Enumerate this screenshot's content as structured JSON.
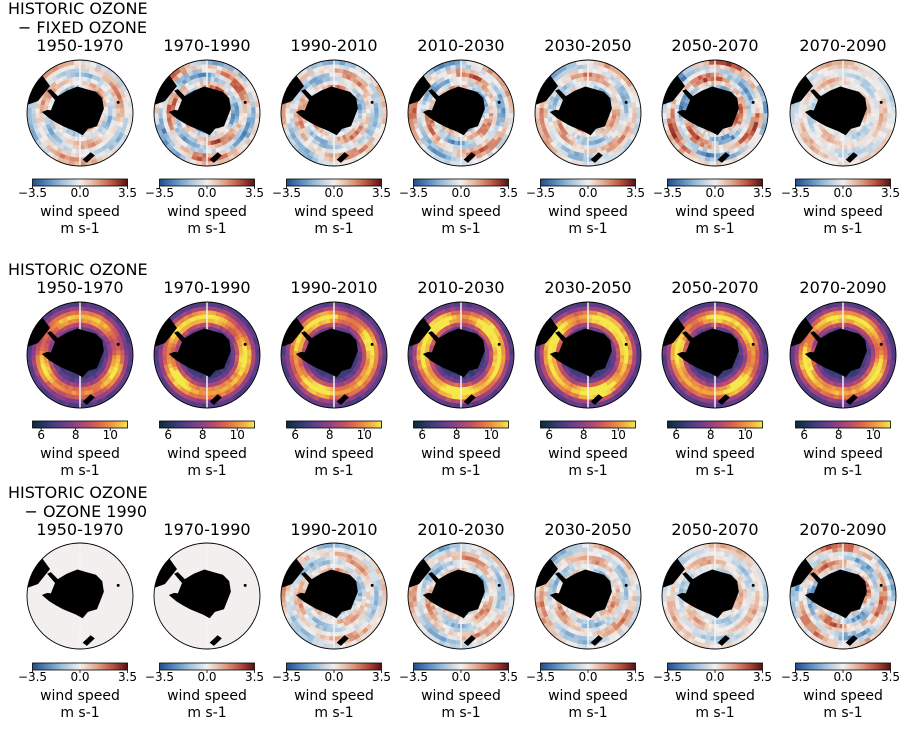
{
  "chart_data": {
    "type": "heatmap",
    "projection": "south-polar stereographic",
    "periods": [
      "1950-1970",
      "1970-1990",
      "1990-2010",
      "2010-2030",
      "2030-2050",
      "2050-2070",
      "2070-2090"
    ],
    "rows": [
      {
        "title_line1": "HISTORIC OZONE",
        "title_line2": "− FIXED OZONE",
        "colormap": "diverging-blue-white-red",
        "color_low": "#1f4e8c",
        "color_mid": "#f2efee",
        "color_high": "#5a0f14",
        "vmin": -3.5,
        "vmax": 3.5,
        "ticks": [
          -3.5,
          0.0,
          3.5
        ],
        "tick_labels": [
          "−3.5",
          "0.0",
          "3.5"
        ],
        "colorbar_label": "wind speed",
        "colorbar_units": "m s-1",
        "field_intensity": [
          0.55,
          0.8,
          0.65,
          0.75,
          0.6,
          0.85,
          0.4
        ]
      },
      {
        "title_line1": "HISTORIC OZONE",
        "title_line2": "",
        "colormap": "thermal",
        "color_low": "#0c2a3a",
        "color_mid": "#8a3f8a",
        "color_high": "#f5e84a",
        "vmin": 5.5,
        "vmax": 11,
        "ticks": [
          6,
          8,
          10
        ],
        "tick_labels": [
          "6",
          "8",
          "10"
        ],
        "colorbar_label": "wind speed",
        "colorbar_units": "m s-1",
        "jet_peak": [
          9.5,
          10,
          10,
          10.5,
          10.5,
          10,
          10
        ]
      },
      {
        "title_line1": "HISTORIC OZONE",
        "title_line2": "− OZONE 1990",
        "colormap": "diverging-blue-white-red",
        "color_low": "#1f4e8c",
        "color_mid": "#f2efee",
        "color_high": "#5a0f14",
        "vmin": -3.5,
        "vmax": 3.5,
        "ticks": [
          -3.5,
          0.0,
          3.5
        ],
        "tick_labels": [
          "−3.5",
          "0.0",
          "3.5"
        ],
        "colorbar_label": "wind speed",
        "colorbar_units": "m s-1",
        "field_intensity": [
          0,
          0,
          0.55,
          0.6,
          0.6,
          0.45,
          0.75
        ]
      }
    ]
  }
}
